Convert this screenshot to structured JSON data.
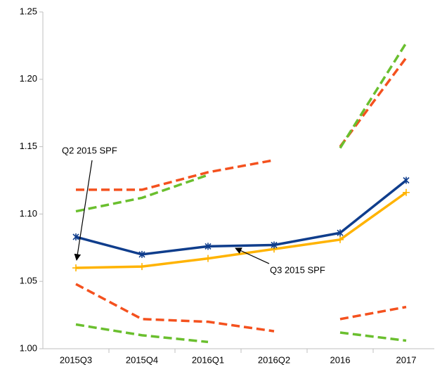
{
  "chart_data": {
    "type": "line",
    "categories": [
      "2015Q3",
      "2015Q4",
      "2016Q1",
      "2016Q2",
      "2016",
      "2017"
    ],
    "series": [
      {
        "color": "#f4511e",
        "dashed": true,
        "values": [
          1.118,
          1.118,
          1.131,
          1.14,
          null,
          null
        ]
      },
      {
        "color": "#f4511e",
        "dashed": true,
        "values": [
          null,
          null,
          null,
          null,
          1.15,
          1.216
        ]
      },
      {
        "color": "#6abf2e",
        "dashed": true,
        "values": [
          1.102,
          1.112,
          1.129,
          null,
          null,
          null
        ]
      },
      {
        "color": "#6abf2e",
        "dashed": true,
        "values": [
          null,
          null,
          null,
          null,
          1.149,
          1.227
        ]
      },
      {
        "color": "#f4511e",
        "dashed": true,
        "values": [
          1.048,
          1.022,
          1.02,
          1.013,
          null,
          null
        ]
      },
      {
        "color": "#f4511e",
        "dashed": true,
        "values": [
          null,
          null,
          null,
          null,
          1.022,
          1.031
        ]
      },
      {
        "color": "#6abf2e",
        "dashed": true,
        "values": [
          1.018,
          1.01,
          1.005,
          null,
          null,
          null
        ]
      },
      {
        "color": "#6abf2e",
        "dashed": true,
        "values": [
          null,
          null,
          null,
          null,
          1.012,
          1.006
        ]
      },
      {
        "color": "#ffb300",
        "marker": "plus",
        "values": [
          1.06,
          1.061,
          1.067,
          1.074,
          1.081,
          1.116
        ]
      },
      {
        "color": "#0f3d8c",
        "marker": "x",
        "values": [
          1.083,
          1.07,
          1.076,
          1.077,
          1.086,
          1.125
        ]
      }
    ],
    "annotations": [
      "Q2 2015 SPF",
      "Q3 2015 SPF"
    ],
    "ylim": [
      1.0,
      1.25
    ],
    "yticks": [
      {
        "value": 1.0,
        "label": "1.00"
      },
      1.05,
      {
        "value": 1.1,
        "label": "1.10"
      },
      1.15,
      {
        "value": 1.2,
        "label": "1.20"
      },
      1.25
    ],
    "grid": false
  }
}
